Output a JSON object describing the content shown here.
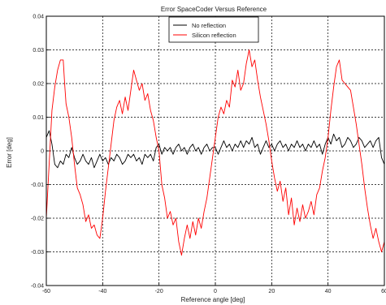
{
  "chart_data": {
    "type": "line",
    "title": "Error SpaceCoder Versus Reference",
    "xlabel": "Reference angle [deg]",
    "ylabel": "Error [deg]",
    "xlim": [
      -60,
      60
    ],
    "ylim": [
      -0.04,
      0.04
    ],
    "xticks": [
      -60,
      -40,
      -20,
      0,
      20,
      40,
      60
    ],
    "yticks": [
      -0.04,
      -0.03,
      -0.02,
      -0.01,
      0,
      0.01,
      0.02,
      0.03,
      0.04
    ],
    "xtick_labels": [
      "-60",
      "-40",
      "-20",
      "0",
      "20",
      "40",
      "60"
    ],
    "ytick_labels": [
      "-0.04",
      "-0.03",
      "-0.02",
      "-0.01",
      "0",
      "0.01",
      "0.02",
      "0.03",
      "0.04"
    ],
    "grid": true,
    "legend_position": "top-center",
    "series": [
      {
        "name": "No reflection",
        "color": "#000000",
        "points": [
          [
            -60,
            0.004
          ],
          [
            -59,
            0.006
          ],
          [
            -58,
            0.002
          ],
          [
            -57,
            -0.004
          ],
          [
            -56,
            -0.005
          ],
          [
            -55,
            -0.003
          ],
          [
            -54,
            -0.004
          ],
          [
            -53,
            -0.001
          ],
          [
            -52,
            -0.002
          ],
          [
            -51,
            0.001
          ],
          [
            -50,
            -0.002
          ],
          [
            -49,
            -0.004
          ],
          [
            -48,
            -0.003
          ],
          [
            -47,
            -0.001
          ],
          [
            -46,
            -0.003
          ],
          [
            -45,
            -0.004
          ],
          [
            -44,
            -0.002
          ],
          [
            -43,
            -0.005
          ],
          [
            -42,
            -0.003
          ],
          [
            -41,
            -0.001
          ],
          [
            -40,
            -0.003
          ],
          [
            -39,
            -0.002
          ],
          [
            -38,
            -0.004
          ],
          [
            -37,
            -0.002
          ],
          [
            -36,
            -0.003
          ],
          [
            -35,
            -0.001
          ],
          [
            -34,
            -0.002
          ],
          [
            -33,
            -0.004
          ],
          [
            -32,
            -0.003
          ],
          [
            -31,
            -0.001
          ],
          [
            -30,
            -0.002
          ],
          [
            -29,
            -0.001
          ],
          [
            -28,
            -0.003
          ],
          [
            -27,
            -0.002
          ],
          [
            -26,
            -0.004
          ],
          [
            -25,
            -0.001
          ],
          [
            -24,
            -0.002
          ],
          [
            -23,
            -0.001
          ],
          [
            -22,
            -0.003
          ],
          [
            -21,
            0.001
          ],
          [
            -20,
            0.002
          ],
          [
            -19,
            -0.001
          ],
          [
            -18,
            0.001
          ],
          [
            -17,
            0.0
          ],
          [
            -16,
            0.001
          ],
          [
            -15,
            -0.001
          ],
          [
            -14,
            0.001
          ],
          [
            -13,
            0.002
          ],
          [
            -12,
            0.0
          ],
          [
            -11,
            0.001
          ],
          [
            -10,
            -0.001
          ],
          [
            -9,
            0.001
          ],
          [
            -8,
            0.002
          ],
          [
            -7,
            0.0
          ],
          [
            -6,
            0.001
          ],
          [
            -5,
            -0.001
          ],
          [
            -4,
            0.001
          ],
          [
            -3,
            0.002
          ],
          [
            -2,
            0.0
          ],
          [
            -1,
            0.001
          ],
          [
            0,
            0.001
          ],
          [
            1,
            -0.001
          ],
          [
            2,
            0.001
          ],
          [
            3,
            0.003
          ],
          [
            4,
            0.001
          ],
          [
            5,
            0.002
          ],
          [
            6,
            0.0
          ],
          [
            7,
            0.002
          ],
          [
            8,
            0.001
          ],
          [
            9,
            0.003
          ],
          [
            10,
            0.001
          ],
          [
            11,
            0.003
          ],
          [
            12,
            0.002
          ],
          [
            13,
            0.004
          ],
          [
            14,
            0.001
          ],
          [
            15,
            0.002
          ],
          [
            16,
            -0.001
          ],
          [
            17,
            0.001
          ],
          [
            18,
            0.003
          ],
          [
            19,
            0.001
          ],
          [
            20,
            0.002
          ],
          [
            21,
            0.0
          ],
          [
            22,
            0.002
          ],
          [
            23,
            0.003
          ],
          [
            24,
            0.001
          ],
          [
            25,
            0.002
          ],
          [
            26,
            0.0
          ],
          [
            27,
            0.002
          ],
          [
            28,
            0.001
          ],
          [
            29,
            0.003
          ],
          [
            30,
            0.001
          ],
          [
            31,
            0.002
          ],
          [
            32,
            0.0
          ],
          [
            33,
            0.002
          ],
          [
            34,
            0.001
          ],
          [
            35,
            0.003
          ],
          [
            36,
            0.001
          ],
          [
            37,
            0.002
          ],
          [
            38,
            -0.001
          ],
          [
            39,
            0.002
          ],
          [
            40,
            0.004
          ],
          [
            41,
            0.002
          ],
          [
            42,
            0.005
          ],
          [
            43,
            0.003
          ],
          [
            44,
            0.004
          ],
          [
            45,
            0.001
          ],
          [
            46,
            0.002
          ],
          [
            47,
            0.004
          ],
          [
            48,
            0.003
          ],
          [
            49,
            0.001
          ],
          [
            50,
            0.002
          ],
          [
            51,
            0.004
          ],
          [
            52,
            0.003
          ],
          [
            53,
            0.001
          ],
          [
            54,
            0.002
          ],
          [
            55,
            0.003
          ],
          [
            56,
            0.001
          ],
          [
            57,
            0.003
          ],
          [
            58,
            0.004
          ],
          [
            59,
            -0.002
          ],
          [
            60,
            -0.004
          ]
        ]
      },
      {
        "name": "Silicon reflection",
        "color": "#ff0000",
        "points": [
          [
            -60,
            -0.02
          ],
          [
            -59.5,
            -0.012
          ],
          [
            -59,
            -0.004
          ],
          [
            -58.5,
            0.004
          ],
          [
            -58,
            0.012
          ],
          [
            -57,
            0.019
          ],
          [
            -56,
            0.024
          ],
          [
            -55,
            0.027
          ],
          [
            -54,
            0.027
          ],
          [
            -53.5,
            0.02
          ],
          [
            -53,
            0.014
          ],
          [
            -52,
            0.01
          ],
          [
            -51,
            0.004
          ],
          [
            -50,
            -0.004
          ],
          [
            -49,
            -0.011
          ],
          [
            -48,
            -0.013
          ],
          [
            -47,
            -0.016
          ],
          [
            -46,
            -0.021
          ],
          [
            -45,
            -0.019
          ],
          [
            -44,
            -0.023
          ],
          [
            -43,
            -0.022
          ],
          [
            -42,
            -0.025
          ],
          [
            -41,
            -0.026
          ],
          [
            -40,
            -0.02
          ],
          [
            -39,
            -0.012
          ],
          [
            -38,
            -0.005
          ],
          [
            -37,
            0.002
          ],
          [
            -36,
            0.009
          ],
          [
            -35,
            0.013
          ],
          [
            -34,
            0.015
          ],
          [
            -33,
            0.011
          ],
          [
            -32,
            0.016
          ],
          [
            -31,
            0.012
          ],
          [
            -30,
            0.018
          ],
          [
            -29,
            0.024
          ],
          [
            -28,
            0.021
          ],
          [
            -27,
            0.018
          ],
          [
            -26,
            0.02
          ],
          [
            -25,
            0.015
          ],
          [
            -24,
            0.017
          ],
          [
            -23,
            0.012
          ],
          [
            -22,
            0.009
          ],
          [
            -21,
            0.004
          ],
          [
            -20,
            0.0
          ],
          [
            -19,
            -0.01
          ],
          [
            -18,
            -0.014
          ],
          [
            -17,
            -0.02
          ],
          [
            -16,
            -0.018
          ],
          [
            -15,
            -0.022
          ],
          [
            -14,
            -0.02
          ],
          [
            -13,
            -0.027
          ],
          [
            -12,
            -0.031
          ],
          [
            -11,
            -0.026
          ],
          [
            -10,
            -0.022
          ],
          [
            -9,
            -0.026
          ],
          [
            -8,
            -0.021
          ],
          [
            -7,
            -0.025
          ],
          [
            -6,
            -0.02
          ],
          [
            -5,
            -0.023
          ],
          [
            -4,
            -0.018
          ],
          [
            -3,
            -0.014
          ],
          [
            -2,
            -0.008
          ],
          [
            -1,
            -0.002
          ],
          [
            0,
            0.004
          ],
          [
            1,
            0.01
          ],
          [
            2,
            0.013
          ],
          [
            3,
            0.011
          ],
          [
            4,
            0.015
          ],
          [
            5,
            0.013
          ],
          [
            6,
            0.021
          ],
          [
            7,
            0.019
          ],
          [
            8,
            0.024
          ],
          [
            9,
            0.018
          ],
          [
            10,
            0.02
          ],
          [
            11,
            0.026
          ],
          [
            12,
            0.03
          ],
          [
            13,
            0.025
          ],
          [
            14,
            0.027
          ],
          [
            15,
            0.021
          ],
          [
            16,
            0.016
          ],
          [
            17,
            0.012
          ],
          [
            18,
            0.008
          ],
          [
            19,
            0.003
          ],
          [
            20,
            -0.003
          ],
          [
            21,
            -0.008
          ],
          [
            22,
            -0.012
          ],
          [
            23,
            -0.009
          ],
          [
            24,
            -0.015
          ],
          [
            25,
            -0.011
          ],
          [
            26,
            -0.019
          ],
          [
            27,
            -0.014
          ],
          [
            28,
            -0.022
          ],
          [
            29,
            -0.017
          ],
          [
            30,
            -0.021
          ],
          [
            31,
            -0.016
          ],
          [
            32,
            -0.02
          ],
          [
            33,
            -0.018
          ],
          [
            34,
            -0.015
          ],
          [
            35,
            -0.019
          ],
          [
            36,
            -0.013
          ],
          [
            37,
            -0.011
          ],
          [
            38,
            -0.006
          ],
          [
            39,
            -0.002
          ],
          [
            40,
            0.004
          ],
          [
            41,
            0.012
          ],
          [
            42,
            0.019
          ],
          [
            43,
            0.025
          ],
          [
            44,
            0.027
          ],
          [
            45,
            0.021
          ],
          [
            46,
            0.02
          ],
          [
            47,
            0.019
          ],
          [
            48,
            0.018
          ],
          [
            49,
            0.013
          ],
          [
            50,
            0.008
          ],
          [
            51,
            0.002
          ],
          [
            52,
            -0.004
          ],
          [
            53,
            -0.011
          ],
          [
            54,
            -0.017
          ],
          [
            55,
            -0.022
          ],
          [
            56,
            -0.026
          ],
          [
            57,
            -0.023
          ],
          [
            58,
            -0.027
          ],
          [
            59,
            -0.03
          ],
          [
            60,
            -0.027
          ]
        ]
      }
    ]
  }
}
